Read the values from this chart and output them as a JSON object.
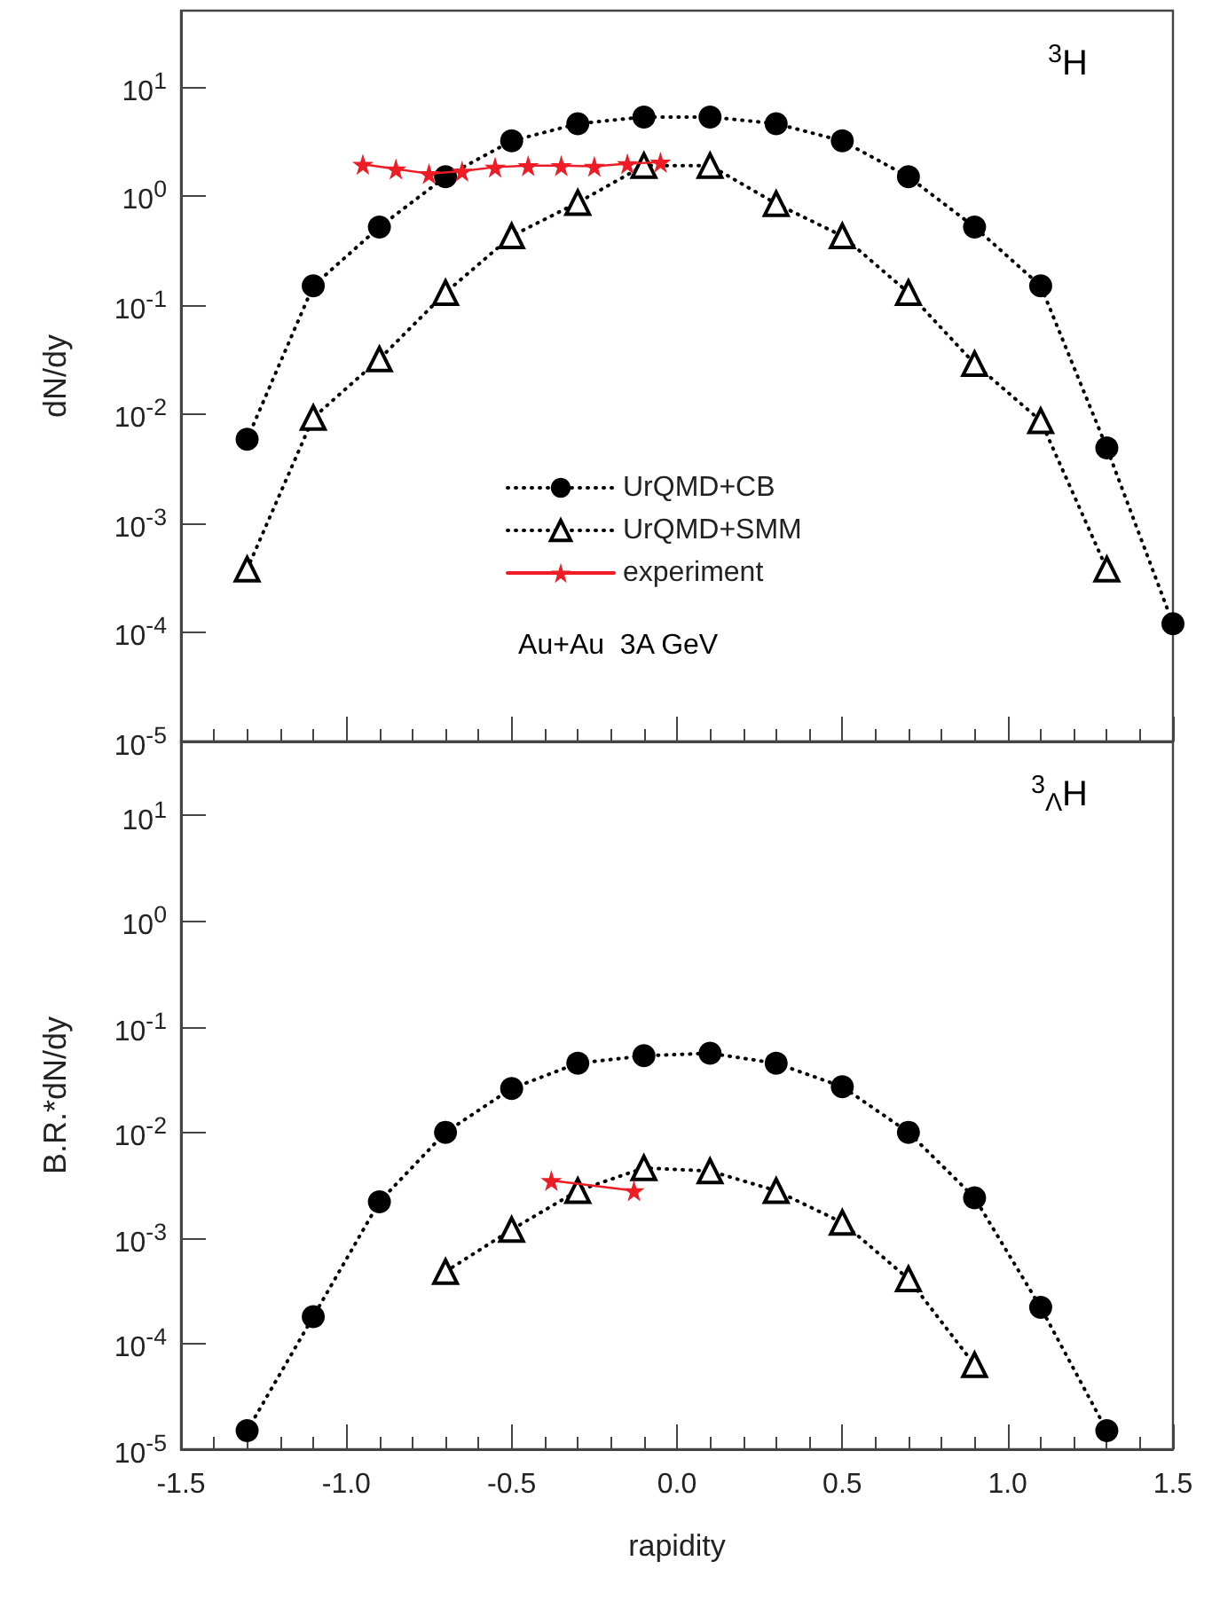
{
  "chart_data": [
    {
      "type": "line",
      "ylabel": "dN/dy",
      "log": "y",
      "ylim": [
        1e-05,
        50
      ],
      "xlim": [
        -1.5,
        1.5
      ],
      "xticks": [
        {
          "value": -1.5,
          "label": null
        },
        {
          "value": -1,
          "label": null
        },
        {
          "value": -0.5,
          "label": null
        },
        {
          "value": 0,
          "label": null
        },
        {
          "value": 0.5,
          "label": null
        },
        {
          "value": 1,
          "label": null
        },
        {
          "value": 1.5,
          "label": null
        }
      ],
      "yticks": [
        {
          "value": 1e-05,
          "label": "10$^{-5}$"
        },
        {
          "value": 0.0001,
          "label": "10$^{-4}$"
        },
        {
          "value": 0.001,
          "label": "10$^{-3}$"
        },
        {
          "value": 0.01,
          "label": "10$^{-2}$"
        },
        {
          "value": 0.1,
          "label": "10$^{-1}$"
        },
        {
          "value": 1,
          "label": "10$^{0}$"
        },
        {
          "value": 10,
          "label": "10$^{1}$"
        }
      ],
      "tick_labels": "y",
      "grid": false,
      "legend": "bottom",
      "annotations": [
        "$^{3}$H",
        "Au+Au  3A GeV"
      ],
      "series": [
        {
          "name": "UrQMD+CB",
          "color": "#000000",
          "marker": "circle",
          "line_style": "dotted",
          "x": [
            -1.3,
            -1.1,
            -0.9,
            -0.7,
            -0.5,
            -0.3,
            -0.1,
            0.1,
            0.3,
            0.5,
            0.7,
            0.9,
            1.1,
            1.3,
            1.5
          ],
          "values": [
            0.0059,
            0.15,
            0.52,
            1.5,
            3.2,
            4.6,
            5.3,
            5.3,
            4.6,
            3.2,
            1.5,
            0.52,
            0.15,
            0.0049,
            0.00012
          ]
        },
        {
          "name": "UrQMD+SMM",
          "color": "#000000",
          "marker": "triangle",
          "line_style": "dotted",
          "x": [
            -1.3,
            -1.1,
            -0.9,
            -0.7,
            -0.5,
            -0.3,
            -0.1,
            0.1,
            0.3,
            0.5,
            0.7,
            0.9,
            1.1,
            1.3
          ],
          "values": [
            0.00038,
            0.0093,
            0.032,
            0.13,
            0.43,
            0.87,
            1.9,
            1.9,
            0.85,
            0.43,
            0.13,
            0.029,
            0.0087,
            0.00038
          ]
        },
        {
          "name": "experiment",
          "color": "#ee1c25",
          "marker": "star",
          "line_style": "solid",
          "x": [
            -0.95,
            -0.85,
            -0.75,
            -0.65,
            -0.55,
            -0.45,
            -0.35,
            -0.25,
            -0.15,
            -0.05
          ],
          "values": [
            1.95,
            1.77,
            1.6,
            1.69,
            1.84,
            1.9,
            1.9,
            1.87,
            1.98,
            2.04
          ]
        }
      ]
    },
    {
      "type": "line",
      "ylabel": "B.R.*dN/dy",
      "xlabel": "rapidity",
      "log": "y",
      "ylim": [
        1e-05,
        50
      ],
      "xlim": [
        -1.5,
        1.5
      ],
      "xticks": [
        {
          "value": -1.5,
          "label": "-1.5"
        },
        {
          "value": -1,
          "label": "-1.0"
        },
        {
          "value": -0.5,
          "label": "-0.5"
        },
        {
          "value": 0,
          "label": "0.0"
        },
        {
          "value": 0.5,
          "label": "0.5"
        },
        {
          "value": 1,
          "label": "1.0"
        },
        {
          "value": 1.5,
          "label": "1.5"
        }
      ],
      "yticks": [
        {
          "value": 1e-05,
          "label": "10$^{-5}$"
        },
        {
          "value": 0.0001,
          "label": "10$^{-4}$"
        },
        {
          "value": 0.001,
          "label": "10$^{-3}$"
        },
        {
          "value": 0.01,
          "label": "10$^{-2}$"
        },
        {
          "value": 0.1,
          "label": "10$^{-1}$"
        },
        {
          "value": 1,
          "label": "10$^{0}$"
        },
        {
          "value": 10,
          "label": "10$^{1}$"
        }
      ],
      "grid": false,
      "annotations": [
        "$^{3}$$_{Λ}$H"
      ],
      "series": [
        {
          "color": "#000000",
          "marker": "circle",
          "line_style": "dotted",
          "x": [
            -1.3,
            -1.1,
            -0.9,
            -0.7,
            -0.5,
            -0.3,
            -0.1,
            0.1,
            0.3,
            0.5,
            0.7,
            0.9,
            1.1,
            1.3
          ],
          "values": [
            1.5e-05,
            0.00018,
            0.0022,
            0.01,
            0.026,
            0.045,
            0.053,
            0.056,
            0.045,
            0.027,
            0.01,
            0.0024,
            0.00022,
            1.5e-05
          ]
        },
        {
          "color": "#000000",
          "marker": "triangle",
          "line_style": "dotted",
          "x": [
            -0.7,
            -0.5,
            -0.3,
            -0.1,
            0.1,
            0.3,
            0.5,
            0.7,
            0.9
          ],
          "values": [
            0.00048,
            0.0012,
            0.0028,
            0.0046,
            0.0043,
            0.0028,
            0.0014,
            0.00041,
            6.3e-05
          ]
        },
        {
          "color": "#ee1c25",
          "marker": "star",
          "line_style": "solid",
          "x": [
            -0.38,
            -0.13
          ],
          "values": [
            0.0035,
            0.0028
          ]
        }
      ]
    }
  ]
}
